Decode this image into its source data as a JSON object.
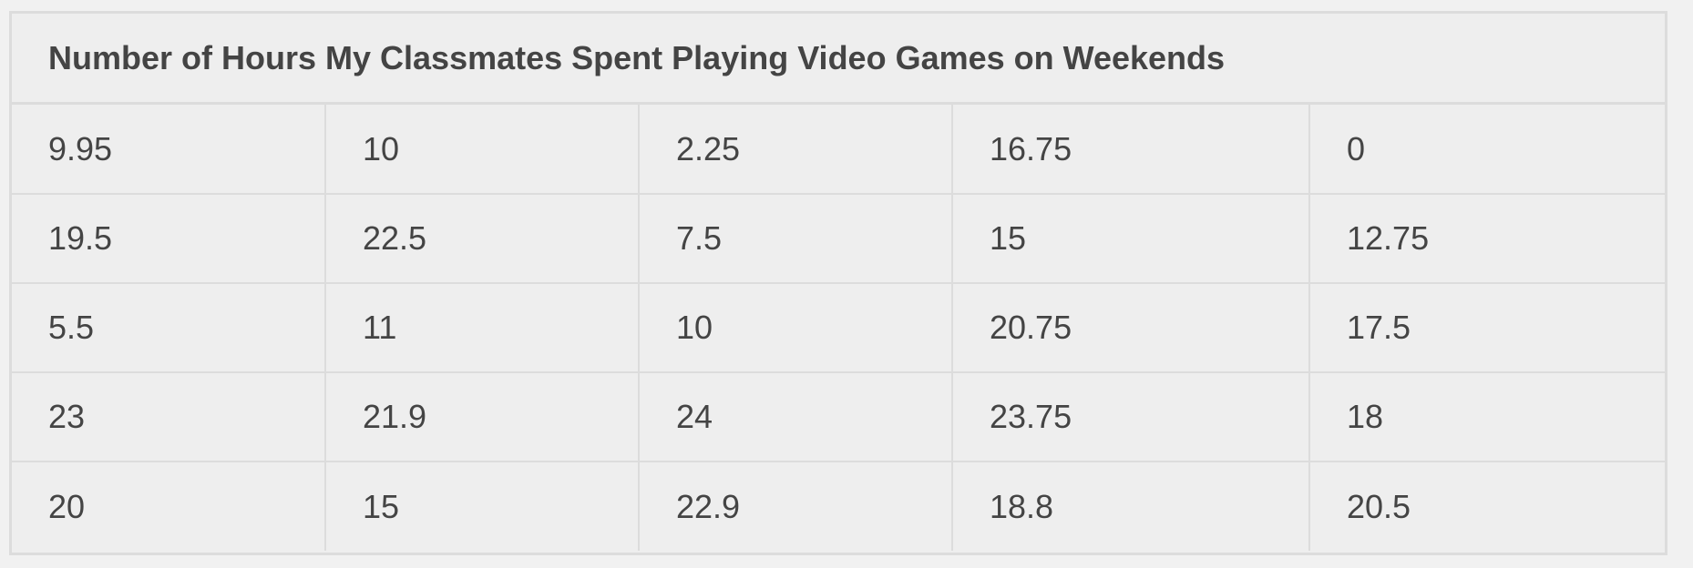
{
  "chart_data": {
    "type": "table",
    "title": "Number of Hours My Classmates Spent Playing Video Games on Weekends",
    "rows": [
      [
        "9.95",
        "10",
        "2.25",
        "16.75",
        "0"
      ],
      [
        "19.5",
        "22.5",
        "7.5",
        "15",
        "12.75"
      ],
      [
        "5.5",
        "11",
        "10",
        "20.75",
        "17.5"
      ],
      [
        "23",
        "21.9",
        "24",
        "23.75",
        "18"
      ],
      [
        "20",
        "15",
        "22.9",
        "18.8",
        "20.5"
      ]
    ]
  }
}
